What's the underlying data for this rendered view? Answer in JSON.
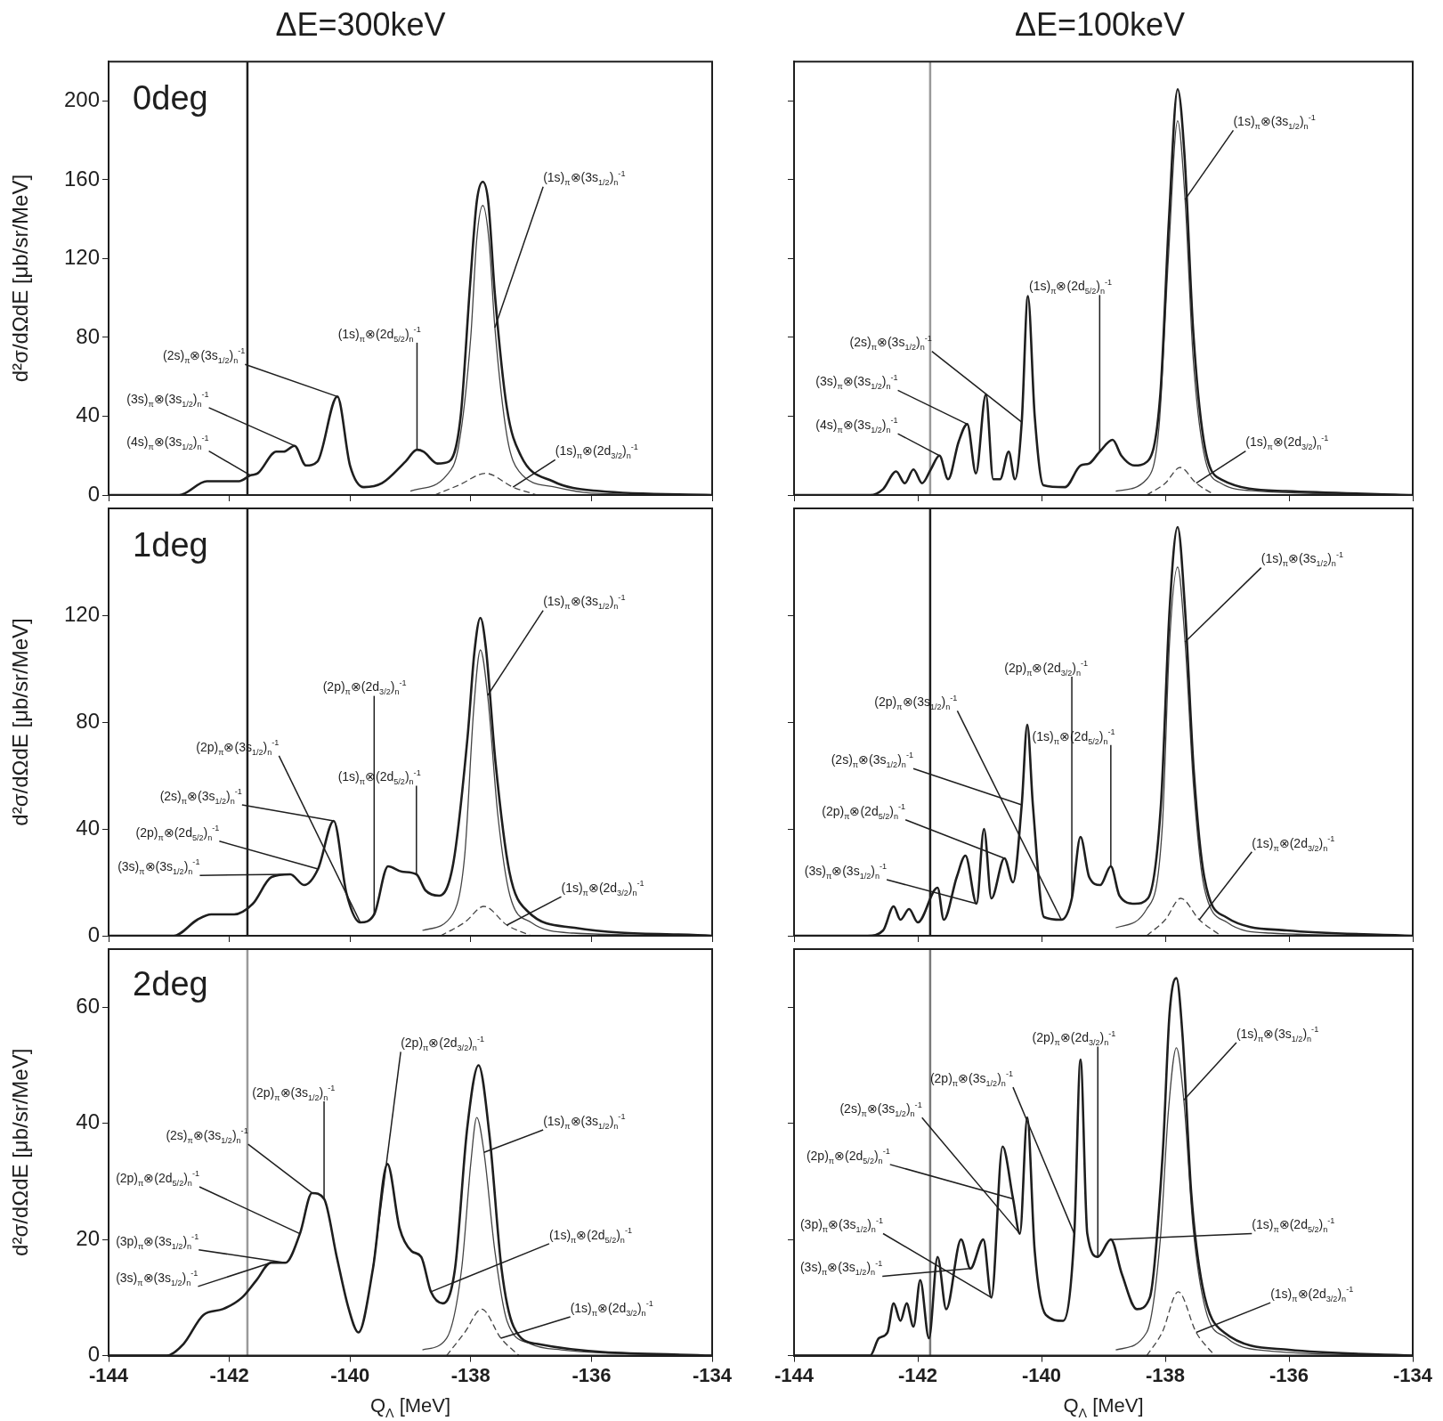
{
  "chart_data": [
    {
      "type": "line",
      "title": "ΔE=300keV",
      "ylabel": "d²σ/dΩdE [μb/sr/MeV]",
      "xlim": [
        -144,
        -134
      ],
      "xticks": [
        -144,
        -142,
        -140,
        -138,
        -136,
        -134
      ],
      "ylim": [
        0,
        220
      ],
      "yticks": [
        0,
        40,
        80,
        120,
        160,
        200
      ],
      "tick_labels": "y",
      "series": [
        {
          "color": "#1e1e1e",
          "x": [
            -144,
            -142.83,
            -142.37,
            -142.22,
            -141.84,
            -141.65,
            -141.53,
            -141.22,
            -141.1,
            -140.92,
            -140.73,
            -140.54,
            -140.21,
            -140.0,
            -139.77,
            -139.47,
            -139.08,
            -138.89,
            -138.78,
            -138.55,
            -138.36,
            -138.17,
            -138.01,
            -137.9,
            -137.8,
            -137.71,
            -137.6,
            -137.4,
            -137.17,
            -136.64,
            -135.87,
            -134
          ],
          "values": [
            0,
            0,
            7,
            7,
            7,
            10,
            11,
            22,
            22,
            25,
            15,
            17,
            50,
            15,
            4,
            6,
            17,
            23,
            22,
            16,
            17,
            39,
            107,
            149,
            159,
            149,
            102,
            44,
            20,
            7,
            2,
            0
          ]
        },
        {
          "color": "#444444",
          "x": [
            -139,
            -138.4,
            -138.2,
            -138.0,
            -137.9,
            -137.8,
            -137.7,
            -137.6,
            -137.4,
            -137.2,
            -136.6,
            -136,
            -134
          ],
          "values": [
            2,
            10,
            25,
            80,
            130,
            147,
            130,
            85,
            30,
            12,
            4,
            1,
            0
          ]
        },
        {
          "color": "#444444",
          "line_style": "dashed",
          "x": [
            -138.6,
            -138.2,
            -137.75,
            -137.3,
            -136.9
          ],
          "values": [
            0,
            5,
            11,
            4,
            0
          ]
        }
      ],
      "ref_lines": [
        {
          "axis": "x",
          "value": -141.7,
          "color": "#1e1e1e"
        }
      ],
      "annotations": [
        "0deg",
        {
          "text": "(1s)$_{π}$⊗(3s$_{1/2}$)$_{n}$$^{-1}$",
          "x": -137.6,
          "y": 85
        },
        {
          "text": "(1s)$_{π}$⊗(2d$_{5/2}$)$_{n}$$^{-1}$",
          "x": -138.89,
          "y": 23
        },
        {
          "text": "(2s)$_{π}$⊗(3s$_{1/2}$)$_{n}$$^{-1}$",
          "x": -140.21,
          "y": 50
        },
        {
          "text": "(3s)$_{π}$⊗(3s$_{1/2}$)$_{n}$$^{-1}$",
          "x": -140.92,
          "y": 25
        },
        {
          "text": "(4s)$_{π}$⊗(3s$_{1/2}$)$_{n}$$^{-1}$",
          "x": -141.65,
          "y": 10
        },
        {
          "text": "(1s)$_{π}$⊗(2d$_{3/2}$)$_{n}$$^{-1}$",
          "x": -137.3,
          "y": 4
        }
      ]
    },
    {
      "type": "line",
      "title": "ΔE=100keV",
      "xlim": [
        -144,
        -134
      ],
      "xticks": [
        -144,
        -142,
        -140,
        -138,
        -136,
        -134
      ],
      "ylim": [
        0,
        220
      ],
      "yticks": [
        0,
        40,
        80,
        120,
        160,
        200
      ],
      "tick_labels": false,
      "series": [
        {
          "color": "#1e1e1e",
          "x": [
            -144,
            -142.77,
            -142.56,
            -142.35,
            -142.21,
            -142.07,
            -141.93,
            -141.79,
            -141.65,
            -141.51,
            -141.34,
            -141.2,
            -141.06,
            -140.9,
            -140.78,
            -140.67,
            -140.53,
            -140.43,
            -140.32,
            -140.22,
            -140.11,
            -139.97,
            -139.62,
            -139.37,
            -139.23,
            -139.06,
            -138.85,
            -138.71,
            -138.5,
            -138.29,
            -138.08,
            -137.94,
            -137.8,
            -137.69,
            -137.55,
            -137.38,
            -137.1,
            -136.05,
            -134
          ],
          "values": [
            0,
            0,
            3,
            12,
            6,
            13,
            6,
            13,
            20,
            8,
            27,
            36,
            11,
            51,
            8,
            8,
            22,
            8,
            37,
            101,
            40,
            5,
            4,
            15,
            16,
            22,
            28,
            20,
            15,
            17,
            51,
            140,
            206,
            173,
            84,
            28,
            8,
            2,
            0
          ]
        },
        {
          "color": "#444444",
          "x": [
            -138.8,
            -138.3,
            -138.1,
            -137.95,
            -137.8,
            -137.68,
            -137.55,
            -137.38,
            -137.1,
            -136.5,
            -134
          ],
          "values": [
            2,
            8,
            35,
            120,
            190,
            150,
            70,
            22,
            6,
            2,
            0
          ]
        },
        {
          "color": "#444444",
          "line_style": "dashed",
          "x": [
            -138.3,
            -138.0,
            -137.76,
            -137.5,
            -137.2
          ],
          "values": [
            0,
            6,
            14,
            6,
            0
          ]
        }
      ],
      "ref_lines": [
        {
          "axis": "x",
          "value": -141.8,
          "color": "#9a9a9a"
        }
      ],
      "annotations": [
        {
          "text": "(1s)$_{π}$⊗(3s$_{1/2}$)$_{n}$$^{-1}$",
          "x": -137.68,
          "y": 150
        },
        {
          "text": "(1s)$_{π}$⊗(2d$_{5/2}$)$_{n}$$^{-1}$",
          "x": -139.06,
          "y": 22
        },
        {
          "text": "(2s)$_{π}$⊗(3s$_{1/2}$)$_{n}$$^{-1}$",
          "x": -140.32,
          "y": 37
        },
        {
          "text": "(3s)$_{π}$⊗(3s$_{1/2}$)$_{n}$$^{-1}$",
          "x": -141.2,
          "y": 36
        },
        {
          "text": "(4s)$_{π}$⊗(3s$_{1/2}$)$_{n}$$^{-1}$",
          "x": -141.65,
          "y": 20
        },
        {
          "text": "(1s)$_{π}$⊗(2d$_{3/2}$)$_{n}$$^{-1}$",
          "x": -137.5,
          "y": 6
        }
      ]
    },
    {
      "type": "line",
      "ylabel": "d²σ/dΩdE [μb/sr/MeV]",
      "xlim": [
        -144,
        -134
      ],
      "xticks": [
        -144,
        -142,
        -140,
        -138,
        -136,
        -134
      ],
      "ylim": [
        0,
        160
      ],
      "yticks": [
        0,
        40,
        80,
        120
      ],
      "tick_labels": "y",
      "series": [
        {
          "color": "#1e1e1e",
          "x": [
            -144,
            -142.92,
            -142.53,
            -142.3,
            -141.92,
            -141.61,
            -141.3,
            -140.99,
            -140.76,
            -140.53,
            -140.27,
            -140.06,
            -139.83,
            -139.6,
            -139.37,
            -139.14,
            -138.9,
            -138.75,
            -138.52,
            -138.29,
            -138.05,
            -137.94,
            -137.84,
            -137.75,
            -137.59,
            -137.36,
            -137.05,
            -136.28,
            -134
          ],
          "values": [
            0,
            0,
            6,
            8,
            8,
            12,
            22,
            23,
            19,
            25,
            43,
            16,
            5,
            8,
            26,
            24,
            23,
            17,
            15,
            27,
            75,
            106,
            119,
            108,
            65,
            24,
            9,
            3,
            0
          ]
        },
        {
          "color": "#444444",
          "x": [
            -138.8,
            -138.3,
            -138.1,
            -137.95,
            -137.84,
            -137.72,
            -137.55,
            -137.35,
            -137,
            -136.3,
            -134
          ],
          "values": [
            2,
            8,
            30,
            85,
            107,
            90,
            45,
            15,
            5,
            1,
            0
          ]
        },
        {
          "color": "#444444",
          "line_style": "dashed",
          "x": [
            -138.5,
            -138.1,
            -137.78,
            -137.4,
            -137.0
          ],
          "values": [
            0,
            5,
            11,
            4,
            0
          ]
        }
      ],
      "ref_lines": [
        {
          "axis": "x",
          "value": -141.7,
          "color": "#1e1e1e"
        }
      ],
      "annotations": [
        "1deg",
        {
          "text": "(1s)$_{π}$⊗(3s$_{1/2}$)$_{n}$$^{-1}$",
          "x": -137.72,
          "y": 90
        },
        {
          "text": "(2p)$_{π}$⊗(2d$_{3/2}$)$_{n}$$^{-1}$",
          "x": -139.6,
          "y": 8
        },
        {
          "text": "(2p)$_{π}$⊗(3s$_{1/2}$)$_{n}$$^{-1}$",
          "x": -139.83,
          "y": 5
        },
        {
          "text": "(1s)$_{π}$⊗(2d$_{5/2}$)$_{n}$$^{-1}$",
          "x": -138.9,
          "y": 23
        },
        {
          "text": "(2s)$_{π}$⊗(3s$_{1/2}$)$_{n}$$^{-1}$",
          "x": -140.27,
          "y": 43
        },
        {
          "text": "(2p)$_{π}$⊗(2d$_{5/2}$)$_{n}$$^{-1}$",
          "x": -140.53,
          "y": 25
        },
        {
          "text": "(3s)$_{π}$⊗(3s$_{1/2}$)$_{n}$$^{-1}$",
          "x": -140.99,
          "y": 23
        },
        {
          "text": "(1s)$_{π}$⊗(2d$_{3/2}$)$_{n}$$^{-1}$",
          "x": -137.4,
          "y": 4
        }
      ]
    },
    {
      "type": "line",
      "xlim": [
        -144,
        -134
      ],
      "xticks": [
        -144,
        -142,
        -140,
        -138,
        -136,
        -134
      ],
      "ylim": [
        0,
        160
      ],
      "yticks": [
        0,
        40,
        80,
        120
      ],
      "tick_labels": false,
      "series": [
        {
          "color": "#1e1e1e",
          "x": [
            -144,
            -142.81,
            -142.56,
            -142.39,
            -142.28,
            -142.14,
            -142,
            -141.68,
            -141.58,
            -141.37,
            -141.23,
            -141.05,
            -140.93,
            -140.81,
            -140.6,
            -140.46,
            -140.32,
            -140.23,
            -140.14,
            -139.96,
            -139.68,
            -139.51,
            -139.37,
            -139.23,
            -139.05,
            -138.88,
            -138.74,
            -138.49,
            -138.28,
            -138.07,
            -137.93,
            -137.8,
            -137.68,
            -137.54,
            -137.37,
            -137.02,
            -136.04,
            -134
          ],
          "values": [
            0,
            0,
            2,
            11,
            6,
            10,
            5,
            18,
            6,
            22,
            30,
            12,
            40,
            14,
            29,
            20,
            49,
            79,
            49,
            7,
            6,
            14,
            37,
            22,
            19,
            26,
            15,
            12,
            14,
            49,
            122,
            153,
            122,
            62,
            22,
            7,
            2,
            0
          ]
        },
        {
          "color": "#444444",
          "x": [
            -138.8,
            -138.3,
            -138.05,
            -137.93,
            -137.8,
            -137.68,
            -137.54,
            -137.37,
            -137,
            -136.3,
            -134
          ],
          "values": [
            3,
            10,
            40,
            110,
            138,
            110,
            55,
            18,
            5,
            1,
            0
          ]
        },
        {
          "color": "#444444",
          "line_style": "dashed",
          "x": [
            -138.3,
            -138.0,
            -137.75,
            -137.45,
            -137.1
          ],
          "values": [
            0,
            6,
            14,
            6,
            0
          ]
        }
      ],
      "ref_lines": [
        {
          "axis": "x",
          "value": -141.8,
          "color": "#1e1e1e"
        }
      ],
      "annotations": [
        {
          "text": "(1s)$_{π}$⊗(3s$_{1/2}$)$_{n}$$^{-1}$",
          "x": -137.68,
          "y": 110
        },
        {
          "text": "(2p)$_{π}$⊗(2d$_{3/2}$)$_{n}$$^{-1}$",
          "x": -139.51,
          "y": 14
        },
        {
          "text": "(2p)$_{π}$⊗(3s$_{1/2}$)$_{n}$$^{-1}$",
          "x": -139.68,
          "y": 6
        },
        {
          "text": "(1s)$_{π}$⊗(2d$_{5/2}$)$_{n}$$^{-1}$",
          "x": -138.88,
          "y": 26
        },
        {
          "text": "(2s)$_{π}$⊗(3s$_{1/2}$)$_{n}$$^{-1}$",
          "x": -140.32,
          "y": 49
        },
        {
          "text": "(2p)$_{π}$⊗(2d$_{5/2}$)$_{n}$$^{-1}$",
          "x": -140.6,
          "y": 29
        },
        {
          "text": "(3s)$_{π}$⊗(3s$_{1/2}$)$_{n}$$^{-1}$",
          "x": -141.05,
          "y": 12
        },
        {
          "text": "(1s)$_{π}$⊗(2d$_{3/2}$)$_{n}$$^{-1}$",
          "x": -137.45,
          "y": 6
        }
      ]
    },
    {
      "type": "line",
      "xlabel": "Q$_{Λ}$ [MeV]",
      "ylabel": "d²σ/dΩdE [μb/sr/MeV]",
      "xlim": [
        -144,
        -134
      ],
      "xticks": [
        -144,
        -142,
        -140,
        -138,
        -136,
        -134
      ],
      "ylim": [
        0,
        70
      ],
      "yticks": [
        0,
        20,
        40,
        60
      ],
      "series": [
        {
          "color": "#1e1e1e",
          "x": [
            -144,
            -143.04,
            -142.76,
            -142.43,
            -142.11,
            -141.79,
            -141.55,
            -141.31,
            -141.07,
            -140.83,
            -140.63,
            -140.43,
            -140.22,
            -140.02,
            -139.86,
            -139.62,
            -139.38,
            -139.18,
            -138.98,
            -138.82,
            -138.66,
            -138.46,
            -138.26,
            -138.06,
            -137.87,
            -137.69,
            -137.49,
            -137.29,
            -136.89,
            -134
          ],
          "values": [
            0,
            0,
            2,
            7,
            8,
            10,
            13,
            16,
            16,
            21,
            28,
            27,
            17,
            8,
            4,
            15,
            33,
            22,
            18,
            17,
            11,
            9,
            15,
            39,
            50,
            38,
            15,
            5,
            2,
            0
          ]
        },
        {
          "color": "#444444",
          "x": [
            -138.8,
            -138.4,
            -138.15,
            -138.0,
            -137.9,
            -137.78,
            -137.6,
            -137.4,
            -137.0,
            -136.5,
            -134
          ],
          "values": [
            1,
            3,
            15,
            33,
            41,
            35,
            18,
            6,
            2,
            1,
            0
          ]
        },
        {
          "color": "#444444",
          "line_style": "dashed",
          "x": [
            -138.4,
            -138.1,
            -137.82,
            -137.5,
            -137.2
          ],
          "values": [
            0,
            4,
            8,
            3,
            0
          ]
        }
      ],
      "ref_lines": [
        {
          "axis": "x",
          "value": -141.7,
          "color": "#9a9a9a"
        }
      ],
      "annotations": [
        "2deg",
        {
          "text": "(2p)$_{π}$⊗(2d$_{3/2}$)$_{n}$$^{-1}$",
          "x": -139.62,
          "y": 15
        },
        {
          "text": "(2p)$_{π}$⊗(3s$_{1/2}$)$_{n}$$^{-1}$",
          "x": -140.43,
          "y": 27
        },
        {
          "text": "(2s)$_{π}$⊗(3s$_{1/2}$)$_{n}$$^{-1}$",
          "x": -140.63,
          "y": 28
        },
        {
          "text": "(1s)$_{π}$⊗(3s$_{1/2}$)$_{n}$$^{-1}$",
          "x": -137.78,
          "y": 35
        },
        {
          "text": "(2p)$_{π}$⊗(2d$_{5/2}$)$_{n}$$^{-1}$",
          "x": -140.83,
          "y": 21
        },
        {
          "text": "(1s)$_{π}$⊗(2d$_{5/2}$)$_{n}$$^{-1}$",
          "x": -138.66,
          "y": 11
        },
        {
          "text": "(3p)$_{π}$⊗(3s$_{1/2}$)$_{n}$$^{-1}$",
          "x": -141.07,
          "y": 16
        },
        {
          "text": "(3s)$_{π}$⊗(3s$_{1/2}$)$_{n}$$^{-1}$",
          "x": -141.31,
          "y": 16
        },
        {
          "text": "(1s)$_{π}$⊗(2d$_{3/2}$)$_{n}$$^{-1}$",
          "x": -137.5,
          "y": 3
        }
      ]
    },
    {
      "type": "line",
      "xlabel": "Q$_{Λ}$ [MeV]",
      "xlim": [
        -144,
        -134
      ],
      "xticks": [
        -144,
        -142,
        -140,
        -138,
        -136,
        -134
      ],
      "ylim": [
        0,
        70
      ],
      "yticks": [
        0,
        20,
        40,
        60
      ],
      "tick_labels": "x",
      "series": [
        {
          "color": "#1e1e1e",
          "x": [
            -144,
            -142.77,
            -142.63,
            -142.49,
            -142.39,
            -142.28,
            -142.18,
            -142.07,
            -141.96,
            -141.82,
            -141.68,
            -141.54,
            -141.3,
            -141.15,
            -140.94,
            -140.81,
            -140.63,
            -140.46,
            -140.35,
            -140.23,
            -140.11,
            -139.93,
            -139.65,
            -139.47,
            -139.37,
            -139.26,
            -139.09,
            -138.88,
            -138.7,
            -138.46,
            -138.25,
            -138.04,
            -137.93,
            -137.82,
            -137.72,
            -137.58,
            -137.4,
            -137.05,
            -136,
            -134
          ],
          "values": [
            0,
            0,
            3,
            4,
            9,
            6,
            9,
            5,
            13,
            3,
            17,
            8,
            20,
            15,
            20,
            10,
            36,
            27,
            21,
            41,
            18,
            7,
            6,
            21,
            51,
            21,
            17,
            20,
            14,
            8,
            10,
            35,
            59,
            65,
            55,
            28,
            12,
            4,
            1,
            0
          ]
        },
        {
          "color": "#444444",
          "x": [
            -138.8,
            -138.3,
            -138.08,
            -137.95,
            -137.82,
            -137.7,
            -137.55,
            -137.35,
            -137,
            -136.5,
            -134
          ],
          "values": [
            1,
            4,
            20,
            42,
            53,
            44,
            22,
            8,
            3,
            1,
            0
          ]
        },
        {
          "color": "#444444",
          "line_style": "dashed",
          "x": [
            -138.3,
            -138.05,
            -137.79,
            -137.5,
            -137.2
          ],
          "values": [
            0,
            4,
            11,
            4,
            0
          ]
        }
      ],
      "ref_lines": [
        {
          "axis": "x",
          "value": -141.8,
          "color": "#7a7a7a"
        }
      ],
      "annotations": [
        {
          "text": "(2p)$_{π}$⊗(2d$_{3/2}$)$_{n}$$^{-1}$",
          "x": -139.09,
          "y": 17
        },
        {
          "text": "(2p)$_{π}$⊗(3s$_{1/2}$)$_{n}$$^{-1}$",
          "x": -139.47,
          "y": 21
        },
        {
          "text": "(2s)$_{π}$⊗(3s$_{1/2}$)$_{n}$$^{-1}$",
          "x": -140.35,
          "y": 21
        },
        {
          "text": "(1s)$_{π}$⊗(3s$_{1/2}$)$_{n}$$^{-1}$",
          "x": -137.7,
          "y": 44
        },
        {
          "text": "(2p)$_{π}$⊗(2d$_{5/2}$)$_{n}$$^{-1}$",
          "x": -140.46,
          "y": 27
        },
        {
          "text": "(1s)$_{π}$⊗(2d$_{5/2}$)$_{n}$$^{-1}$",
          "x": -138.88,
          "y": 20
        },
        {
          "text": "(3p)$_{π}$⊗(3s$_{1/2}$)$_{n}$$^{-1}$",
          "x": -140.81,
          "y": 10
        },
        {
          "text": "(3s)$_{π}$⊗(3s$_{1/2}$)$_{n}$$^{-1}$",
          "x": -141.15,
          "y": 15
        },
        {
          "text": "(1s)$_{π}$⊗(2d$_{3/2}$)$_{n}$$^{-1}$",
          "x": -137.5,
          "y": 4
        }
      ]
    }
  ]
}
